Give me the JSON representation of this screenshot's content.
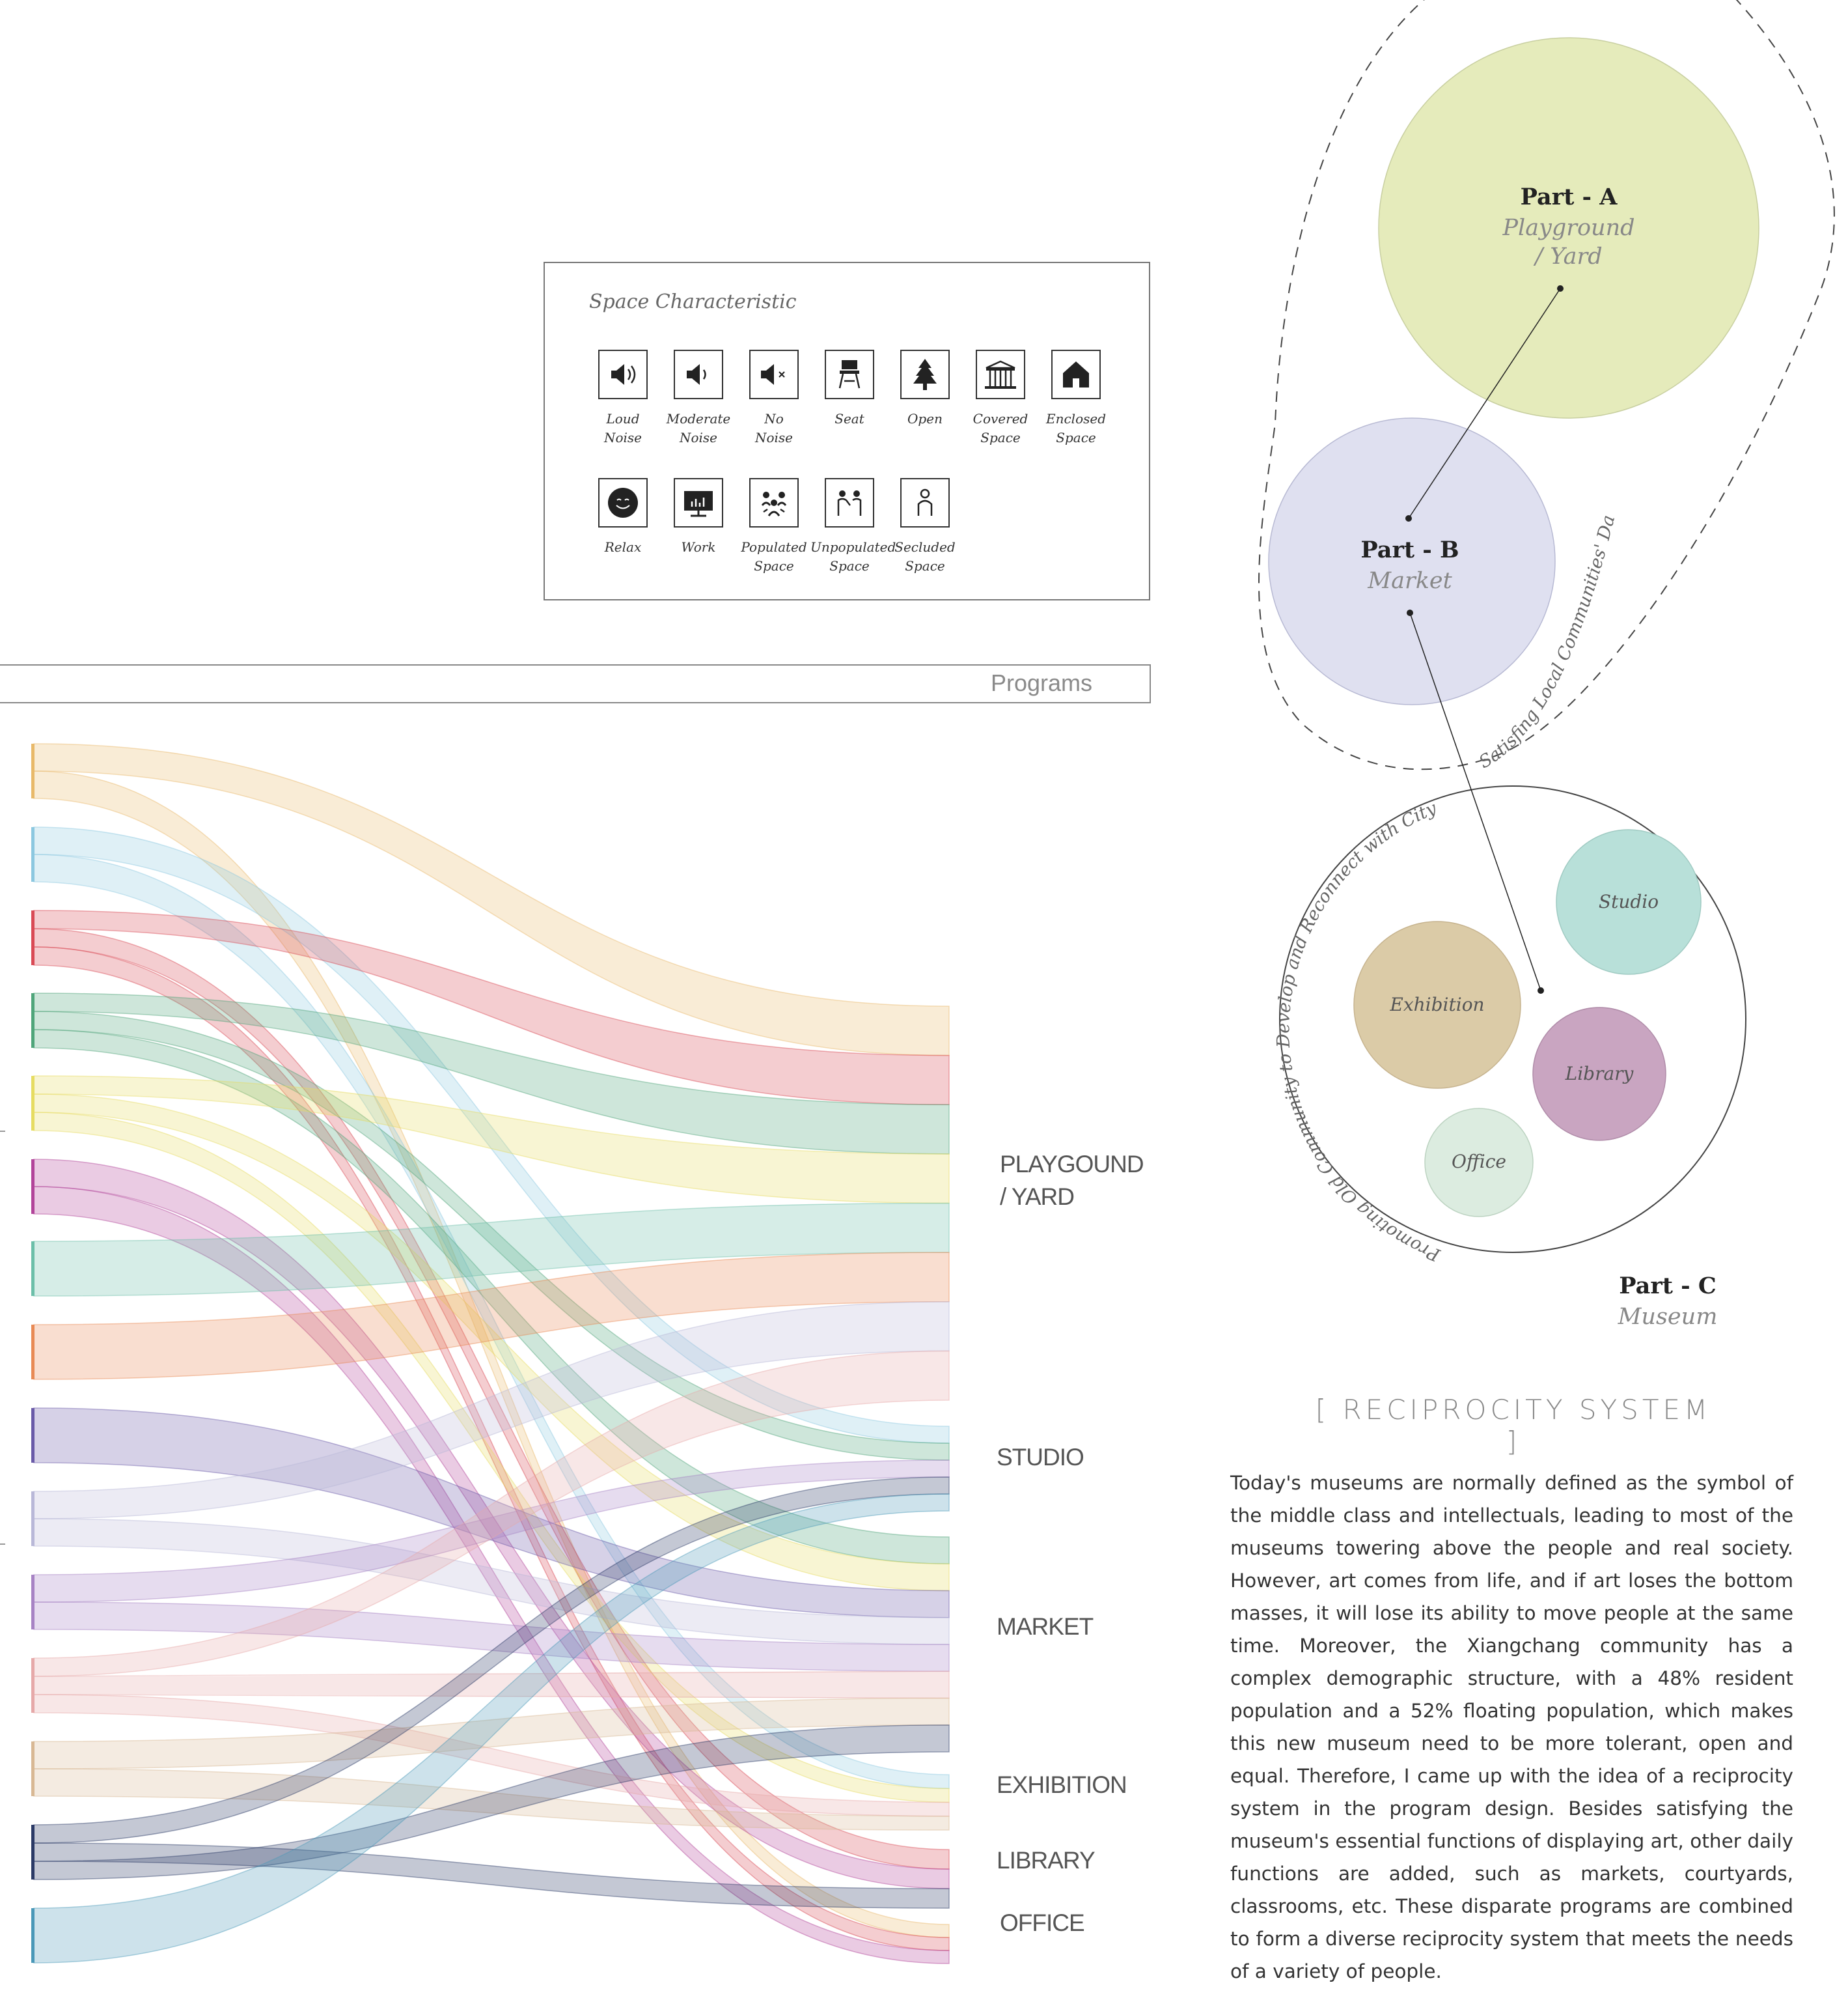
{
  "legend": {
    "title": "Space Characteristic",
    "row1": [
      {
        "icon": "loud-noise-icon",
        "label": "Loud\nNoise"
      },
      {
        "icon": "moderate-noise-icon",
        "label": "Moderate\nNoise"
      },
      {
        "icon": "no-noise-icon",
        "label": "No\nNoise"
      },
      {
        "icon": "seat-icon",
        "label": "Seat"
      },
      {
        "icon": "tree-icon",
        "label": "Open"
      },
      {
        "icon": "pavilion-icon",
        "label": "Covered\nSpace"
      },
      {
        "icon": "house-icon",
        "label": "Enclosed\nSpace"
      }
    ],
    "row2": [
      {
        "icon": "smiley-icon",
        "label": "Relax"
      },
      {
        "icon": "presentation-icon",
        "label": "Work"
      },
      {
        "icon": "group-icon",
        "label": "Populated\nSpace"
      },
      {
        "icon": "pair-icon",
        "label": "Unpopulated\nSpace"
      },
      {
        "icon": "person-icon",
        "label": "Secluded\nSpace"
      }
    ]
  },
  "programs": {
    "label": "Programs"
  },
  "sankey": {
    "targets": [
      {
        "key": "playground",
        "label": "PLAYGOUND\n/ YARD"
      },
      {
        "key": "studio",
        "label": "STUDIO"
      },
      {
        "key": "market",
        "label": "MARKET"
      },
      {
        "key": "exhibition",
        "label": "EXHIBITION"
      },
      {
        "key": "library",
        "label": "LIBRARY"
      },
      {
        "key": "office",
        "label": "OFFICE"
      }
    ],
    "source_colors": [
      "#e8b96a",
      "#8cc8e0",
      "#d94a55",
      "#4fa57a",
      "#e6dc62",
      "#b2449a",
      "#6cbfa9",
      "#e88a55",
      "#6a5aa8",
      "#b9b8d8",
      "#a783c4",
      "#e6a9a9",
      "#d8b894",
      "#2b3a66",
      "#4a98b8"
    ]
  },
  "parts": {
    "a": {
      "title": "Part - A",
      "subtitle": "Playground\n/ Yard",
      "color": "#e5ebbb"
    },
    "b": {
      "title": "Part - B",
      "subtitle": "Market",
      "color": "#dfe0f0"
    },
    "c": {
      "title": "Part - C",
      "subtitle": "Museum"
    },
    "c_rooms": [
      {
        "label": "Studio",
        "color": "#b8e0d9"
      },
      {
        "label": "Exhibition",
        "color": "#dbcba7"
      },
      {
        "label": "Library",
        "color": "#c9a5c1"
      },
      {
        "label": "Office",
        "color": "#dcece0"
      }
    ]
  },
  "annotations": {
    "daily_needs": "Satisfing Local Communities' Daily Needs",
    "promoting": "Promoting Old Community to Develop and Reconnect with City"
  },
  "reciprocity": {
    "title": "[ RECIPROCITY SYSTEM ]",
    "body": "Today's museums are normally defined as the symbol of the middle class and intellectuals, leading to most of the museums towering above the people and real society. However, art comes from life, and if art loses the bottom masses, it will lose its ability to move people at the same time. Moreover, the Xiangchang community has a complex demographic structure, with a 48% resident population and a 52% floating population, which makes this new museum need to be more tolerant, open and equal. Therefore, I came up with the idea of a reciprocity system in the program design. Besides satisfying the museum's essential functions of displaying art, other daily functions are added, such as markets, courtyards, classrooms, etc. These disparate programs are combined to form a diverse reciprocity system that meets the needs of a variety of people."
  }
}
